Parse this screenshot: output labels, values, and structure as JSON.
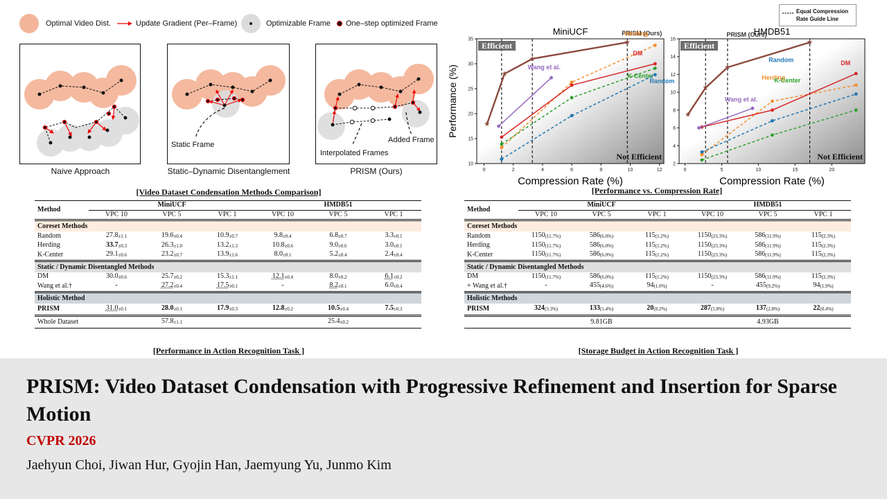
{
  "legend": {
    "optimal": "Optimal Video Dist.",
    "gradient": "Update Gradient (Per–Frame)",
    "optimizable": "Optimizable Frame",
    "one_step": "One–step optimized Frame"
  },
  "panels": {
    "naive": "Naive Approach",
    "static_dynamic": "Static–Dynamic Disentanglement",
    "prism": "PRISM (Ours)",
    "static_frame": "Static Frame",
    "interpolated": "Interpolated Frames",
    "added": "Added Frame"
  },
  "table1": {
    "caption": "[Video Dataset Condensation Methods Comparison]",
    "footer_caption": "[Performance in Action Recognition Task ]",
    "method_header": "Method",
    "group_a": "MiniUCF",
    "group_b": "HMDB51",
    "vpc": [
      "VPC 10",
      "VPC 5",
      "VPC 1",
      "VPC 10",
      "VPC 5",
      "VPC 1"
    ],
    "sec_coreset": "Coreset Methods",
    "sec_static": "Static / Dynamic Disentangled Methods",
    "sec_holistic": "Holistic Method",
    "rows": [
      {
        "name": "Random",
        "cells": [
          [
            "27.8",
            "±1.1"
          ],
          [
            "19.6",
            "±0.4"
          ],
          [
            "10.9",
            "±0.7"
          ],
          [
            "9.8",
            "±0.4"
          ],
          [
            "6.8",
            "±0.7"
          ],
          [
            "3.3",
            "±0.1"
          ]
        ]
      },
      {
        "name": "Herding",
        "cells": [
          [
            "33.7",
            "±0.3"
          ],
          [
            "26.3",
            "±1.0"
          ],
          [
            "13.2",
            "±1.3"
          ],
          [
            "10.8",
            "±0.6"
          ],
          [
            "9.0",
            "±0.6"
          ],
          [
            "3.0",
            "±0.1"
          ]
        ]
      },
      {
        "name": "K-Center",
        "cells": [
          [
            "29.1",
            "±0.6"
          ],
          [
            "23.2",
            "±0.7"
          ],
          [
            "13.9",
            "±1.6"
          ],
          [
            "8.0",
            "±0.1"
          ],
          [
            "5.2",
            "±0.4"
          ],
          [
            "2.4",
            "±0.4"
          ]
        ]
      },
      {
        "name": "DM",
        "cells": [
          [
            "30.0",
            "±0.6"
          ],
          [
            "25.7",
            "±0.2"
          ],
          [
            "15.3",
            "±1.1"
          ],
          [
            "12.1",
            "±0.4"
          ],
          [
            "8.0",
            "±0.2"
          ],
          [
            "6.1",
            "±0.2"
          ]
        ]
      },
      {
        "name": "Wang et al.†",
        "cells": [
          [
            "-",
            ""
          ],
          [
            "27.2",
            "±0.4"
          ],
          [
            "17.5",
            "±0.1"
          ],
          [
            "-",
            ""
          ],
          [
            "8.2",
            "±0.1"
          ],
          [
            "6.0",
            "±0.4"
          ]
        ]
      },
      {
        "name": "PRISM",
        "cells": [
          [
            "31.0",
            "±0.1"
          ],
          [
            "28.0",
            "±0.1"
          ],
          [
            "17.9",
            "±0.3"
          ],
          [
            "12.8",
            "±0.2"
          ],
          [
            "10.5",
            "±0.4"
          ],
          [
            "7.5",
            "±0.3"
          ]
        ]
      }
    ],
    "whole_label": "Whole Dataset",
    "whole": [
      [
        "57.8",
        "±1.1"
      ],
      [
        "25.4",
        "±0.2"
      ]
    ]
  },
  "table2": {
    "footer_caption": "[Storage Budget in Action Recognition Task ]",
    "method_header": "Method",
    "group_a": "MiniUCF",
    "group_b": "HMDB51",
    "vpc": [
      "VPC 10",
      "VPC 5",
      "VPC 1",
      "VPC 10",
      "VPC 5",
      "VPC 1"
    ],
    "sec_coreset": "Coreset Methods",
    "sec_static": "Static / Dynamic Disentangled Methods",
    "sec_holistic": "Holistic Methods",
    "rows": [
      {
        "name": "Random",
        "cells": [
          [
            "1150",
            "(11.7%)"
          ],
          [
            "586",
            "(6.0%)"
          ],
          [
            "115",
            "(1.2%)"
          ],
          [
            "1150",
            "(23.3%)"
          ],
          [
            "586",
            "(11.9%)"
          ],
          [
            "115",
            "(2.3%)"
          ]
        ]
      },
      {
        "name": "Herding",
        "cells": [
          [
            "1150",
            "(11.7%)"
          ],
          [
            "586",
            "(6.0%)"
          ],
          [
            "115",
            "(1.2%)"
          ],
          [
            "1150",
            "(23.3%)"
          ],
          [
            "586",
            "(11.9%)"
          ],
          [
            "115",
            "(2.3%)"
          ]
        ]
      },
      {
        "name": "K-Center",
        "cells": [
          [
            "1150",
            "(11.7%)"
          ],
          [
            "586",
            "(6.0%)"
          ],
          [
            "115",
            "(1.2%)"
          ],
          [
            "1150",
            "(23.3%)"
          ],
          [
            "586",
            "(11.9%)"
          ],
          [
            "115",
            "(2.3%)"
          ]
        ]
      },
      {
        "name": "DM",
        "cells": [
          [
            "1150",
            "(11.7%)"
          ],
          [
            "586",
            "(6.0%)"
          ],
          [
            "115",
            "(1.2%)"
          ],
          [
            "1150",
            "(23.3%)"
          ],
          [
            "586",
            "(11.9%)"
          ],
          [
            "115",
            "(2.3%)"
          ]
        ]
      },
      {
        "name": "+ Wang et al.†",
        "cells": [
          [
            "-",
            ""
          ],
          [
            "455",
            "(4.6%)"
          ],
          [
            "94",
            "(1.0%)"
          ],
          [
            "-",
            ""
          ],
          [
            "455",
            "(9.2%)"
          ],
          [
            "94",
            "(1.9%)"
          ]
        ]
      },
      {
        "name": "PRISM",
        "cells": [
          [
            "324",
            "(3.3%)"
          ],
          [
            "133",
            "(1.4%)"
          ],
          [
            "20",
            "(0.2%)"
          ],
          [
            "287",
            "(5.8%)"
          ],
          [
            "137",
            "(2.8%)"
          ],
          [
            "22",
            "(0.4%)"
          ]
        ]
      }
    ],
    "whole": [
      "9.81GB",
      "4.93GB"
    ]
  },
  "charts_caption": "[Performance vs. Compression Rate]",
  "guide_legend": "Equal Compression Rate Guide Line",
  "chart_data": [
    {
      "type": "line",
      "title": "MiniUCF",
      "xlabel": "Compression Rate (%)",
      "ylabel": "Performance (%)",
      "xlim": [
        -0.5,
        12.3
      ],
      "ylim": [
        10,
        35
      ],
      "xticks": [
        0,
        2,
        4,
        6,
        8,
        10,
        12
      ],
      "yticks": [
        10,
        15,
        20,
        25,
        30,
        35
      ],
      "guides": [
        1.2,
        3.3,
        9.8
      ],
      "efficient": "Efficient",
      "not_efficient": "Not Efficient",
      "series": [
        {
          "name": "PRISM (Ours)",
          "color": "#8b4a3d",
          "dashed": false,
          "points": [
            [
              0.2,
              17.9
            ],
            [
              1.4,
              28.0
            ],
            [
              3.3,
              31.0
            ],
            [
              9.8,
              34.3
            ]
          ]
        },
        {
          "name": "Herding",
          "color": "#f28e2b",
          "dashed": true,
          "points": [
            [
              1.2,
              13.2
            ],
            [
              6.0,
              26.3
            ],
            [
              11.7,
              33.7
            ]
          ]
        },
        {
          "name": "DM",
          "color": "#d62728",
          "dashed": false,
          "points": [
            [
              1.2,
              15.3
            ],
            [
              6.0,
              25.7
            ],
            [
              11.7,
              30.0
            ]
          ]
        },
        {
          "name": "K-Center",
          "color": "#2ca02c",
          "dashed": true,
          "points": [
            [
              1.2,
              13.9
            ],
            [
              6.0,
              23.2
            ],
            [
              11.7,
              29.1
            ]
          ]
        },
        {
          "name": "Random",
          "color": "#1f77b4",
          "dashed": true,
          "points": [
            [
              1.2,
              10.9
            ],
            [
              6.0,
              19.6
            ],
            [
              11.7,
              27.8
            ]
          ]
        },
        {
          "name": "Wang et al.",
          "color": "#9467bd",
          "dashed": false,
          "points": [
            [
              1.0,
              17.5
            ],
            [
              4.6,
              27.2
            ]
          ]
        }
      ]
    },
    {
      "type": "line",
      "title": "HMDB51",
      "xlabel": "Compression Rate (%)",
      "ylabel": "",
      "xlim": [
        -0.8,
        24.5
      ],
      "ylim": [
        2,
        16
      ],
      "xticks": [
        0,
        5,
        10,
        15,
        20
      ],
      "yticks": [
        2,
        4,
        6,
        8,
        10,
        12,
        14,
        16
      ],
      "guides": [
        2.8,
        5.8,
        17.0
      ],
      "efficient": "Efficient",
      "not_efficient": "Not Efficient",
      "series": [
        {
          "name": "PRISM (Ours)",
          "color": "#8b4a3d",
          "dashed": false,
          "points": [
            [
              0.4,
              7.5
            ],
            [
              2.8,
              10.5
            ],
            [
              5.8,
              12.8
            ],
            [
              17.0,
              15.6
            ]
          ]
        },
        {
          "name": "Herding",
          "color": "#f28e2b",
          "dashed": true,
          "points": [
            [
              2.3,
              3.0
            ],
            [
              11.9,
              9.0
            ],
            [
              23.3,
              10.8
            ]
          ]
        },
        {
          "name": "DM",
          "color": "#d62728",
          "dashed": false,
          "points": [
            [
              2.3,
              6.1
            ],
            [
              11.9,
              8.0
            ],
            [
              23.3,
              12.1
            ]
          ]
        },
        {
          "name": "Random",
          "color": "#1f77b4",
          "dashed": true,
          "points": [
            [
              2.3,
              3.3
            ],
            [
              11.9,
              6.8
            ],
            [
              23.3,
              9.8
            ]
          ]
        },
        {
          "name": "K-Center",
          "color": "#2ca02c",
          "dashed": true,
          "points": [
            [
              2.3,
              2.4
            ],
            [
              11.9,
              5.2
            ],
            [
              23.3,
              8.0
            ]
          ]
        },
        {
          "name": "Wang et al.",
          "color": "#9467bd",
          "dashed": false,
          "points": [
            [
              1.9,
              6.0
            ],
            [
              9.2,
              8.2
            ]
          ]
        }
      ]
    }
  ],
  "paper": {
    "title": "PRISM: Video Dataset Condensation with Progressive Refinement and Insertion for Sparse Motion",
    "venue": "CVPR 2026",
    "authors": "Jaehyun Choi, Jiwan Hur, Gyojin Han, Jaemyung Yu, Junmo Kim"
  }
}
